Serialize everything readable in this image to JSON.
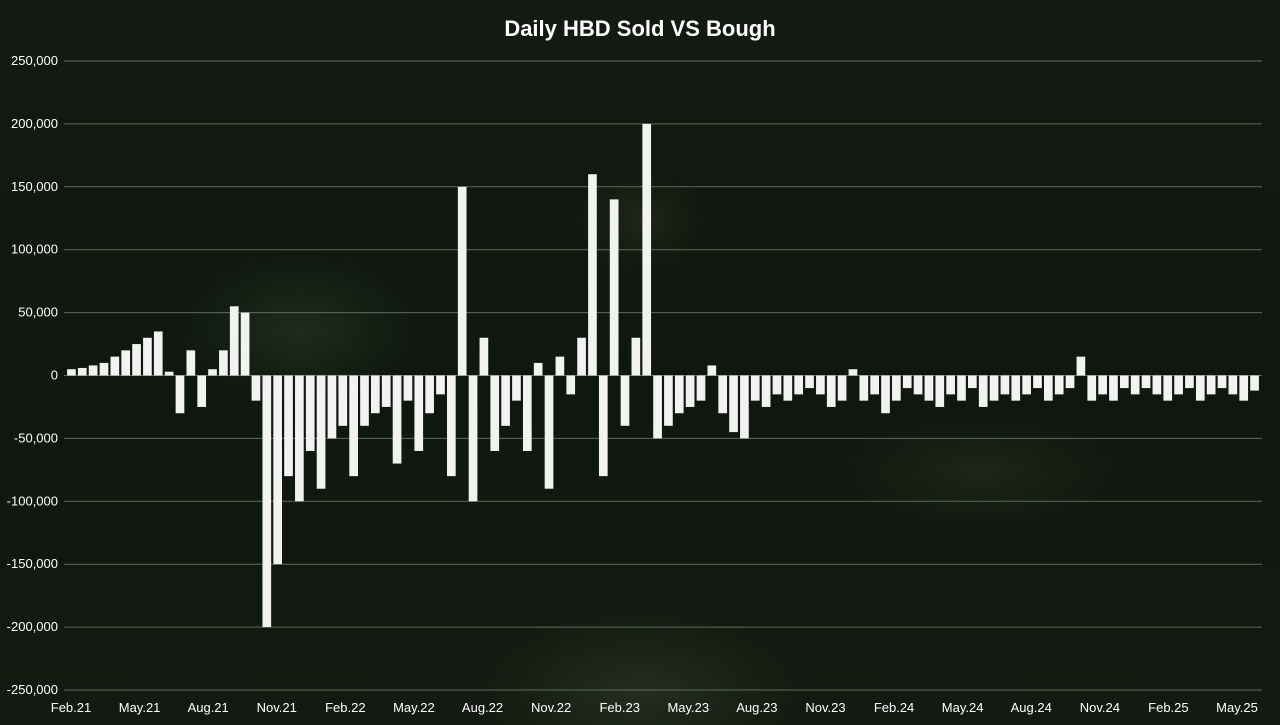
{
  "chart_data": {
    "type": "bar",
    "title": "Daily HBD Sold VS Bough",
    "xlabel": "",
    "ylabel": "",
    "ylim": [
      -250000,
      250000
    ],
    "yticks": [
      250000,
      200000,
      150000,
      100000,
      50000,
      0,
      -50000,
      -100000,
      -150000,
      -200000,
      -250000
    ],
    "ytick_labels": [
      "250,000",
      "200,000",
      "150,000",
      "100,000",
      "50,000",
      "0",
      "-50,000",
      "-100,000",
      "-150,000",
      "-200,000",
      "-250,000"
    ],
    "xtick_labels": [
      "Feb.21",
      "May.21",
      "Aug.21",
      "Nov.21",
      "Feb.22",
      "May.22",
      "Aug.22",
      "Nov.22",
      "Feb.23",
      "May.23",
      "Aug.23",
      "Nov.23",
      "Feb.24",
      "May.24",
      "Aug.24",
      "Nov.24",
      "Feb.25",
      "May.25"
    ],
    "grid": true,
    "legend": "none",
    "colors": {
      "bars": "#f2f2f0",
      "grid": "#5f6b5a",
      "text": "#ffffff"
    },
    "x_unit": "month",
    "series": [
      {
        "values": [
          5000,
          6000,
          8000,
          10000,
          15000,
          20000,
          25000,
          30000,
          35000,
          3000,
          -30000,
          20000,
          -25000,
          5000,
          20000,
          55000,
          50000,
          -20000,
          -200000,
          -150000,
          -80000,
          -100000,
          -60000,
          -90000,
          -50000,
          -40000,
          -80000,
          -40000,
          -30000,
          -25000,
          -70000,
          -20000,
          -60000,
          -30000,
          -15000,
          -80000,
          150000,
          -100000,
          30000,
          -60000,
          -40000,
          -20000,
          -60000,
          10000,
          -90000,
          15000,
          -15000,
          30000,
          160000,
          -80000,
          140000,
          -40000,
          30000,
          200000,
          -50000,
          -40000,
          -30000,
          -25000,
          -20000,
          8000,
          -30000,
          -45000,
          -50000,
          -20000,
          -25000,
          -15000,
          -20000,
          -15000,
          -10000,
          -15000,
          -25000,
          -20000,
          5000,
          -20000,
          -15000,
          -30000,
          -20000,
          -10000,
          -15000,
          -20000,
          -25000,
          -15000,
          -20000,
          -10000,
          -25000,
          -20000,
          -15000,
          -20000,
          -15000,
          -10000,
          -20000,
          -15000,
          -10000,
          15000,
          -20000,
          -15000,
          -20000,
          -10000,
          -15000,
          -10000,
          -15000,
          -20000,
          -15000,
          -10000,
          -20000,
          -15000,
          -10000,
          -15000,
          -20000,
          -12000
        ]
      }
    ]
  }
}
